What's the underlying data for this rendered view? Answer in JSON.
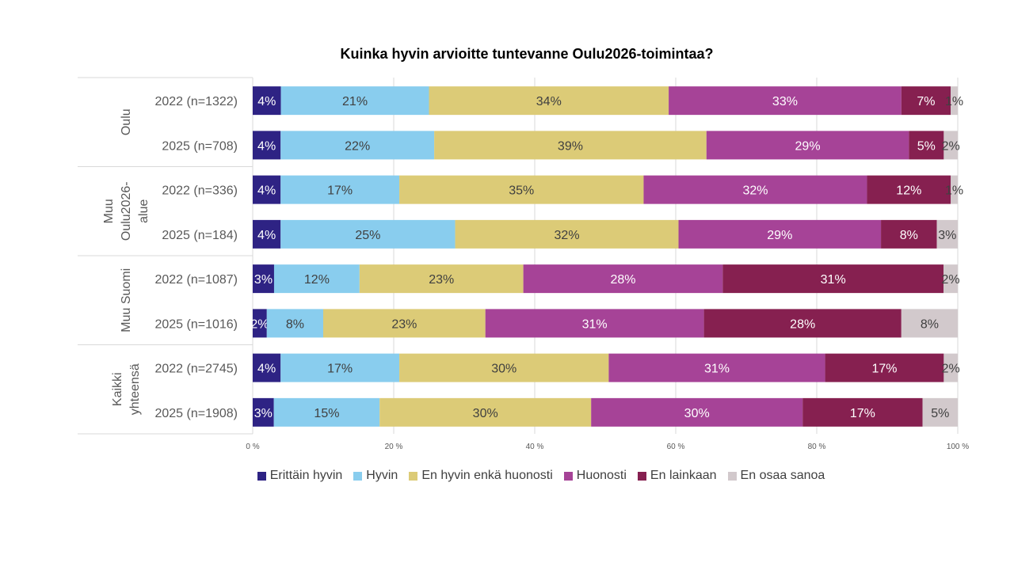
{
  "chart_data": {
    "type": "bar",
    "orientation": "horizontal-stacked-100",
    "title": "Kuinka hyvin arvioitte tuntevanne Oulu2026-toimintaa?",
    "xlim": [
      0,
      100
    ],
    "xticks": [
      "0 %",
      "20 %",
      "40 %",
      "60 %",
      "80 %",
      "100 %"
    ],
    "grid": true,
    "legend_position": "bottom",
    "series": [
      {
        "name": "Erittäin hyvin",
        "color": "#2e2384",
        "label_color": "#ffffff"
      },
      {
        "name": "Hyvin",
        "color": "#89cdee",
        "label_color": "#404040"
      },
      {
        "name": "En hyvin enkä huonosti",
        "color": "#dccb77",
        "label_color": "#404040"
      },
      {
        "name": "Huonosti",
        "color": "#a64397",
        "label_color": "#ffffff"
      },
      {
        "name": "En lainkaan",
        "color": "#862050",
        "label_color": "#ffffff"
      },
      {
        "name": "En osaa sanoa",
        "color": "#d2c9cc",
        "label_color": "#404040"
      }
    ],
    "groups": [
      {
        "name": [
          "Oulu"
        ],
        "rows": [
          {
            "label": "2022 (n=1322)",
            "values": [
              4,
              21,
              34,
              33,
              7,
              1
            ]
          },
          {
            "label": "2025 (n=708)",
            "values": [
              4,
              22,
              39,
              29,
              5,
              2
            ]
          }
        ]
      },
      {
        "name": [
          "Muu",
          "Oulu2026-",
          "alue"
        ],
        "rows": [
          {
            "label": "2022 (n=336)",
            "values": [
              4,
              17,
              35,
              32,
              12,
              1
            ]
          },
          {
            "label": "2025 (n=184)",
            "values": [
              4,
              25,
              32,
              29,
              8,
              3
            ]
          }
        ]
      },
      {
        "name": [
          "Muu Suomi"
        ],
        "rows": [
          {
            "label": "2022 (n=1087)",
            "values": [
              3,
              12,
              23,
              28,
              31,
              2
            ]
          },
          {
            "label": "2025 (n=1016)",
            "values": [
              2,
              8,
              23,
              31,
              28,
              8
            ]
          }
        ]
      },
      {
        "name": [
          "Kaikki",
          "yhteensä"
        ],
        "rows": [
          {
            "label": "2022 (n=2745)",
            "values": [
              4,
              17,
              30,
              31,
              17,
              2
            ]
          },
          {
            "label": "2025 (n=1908)",
            "values": [
              3,
              15,
              30,
              30,
              17,
              5
            ]
          }
        ]
      }
    ]
  }
}
